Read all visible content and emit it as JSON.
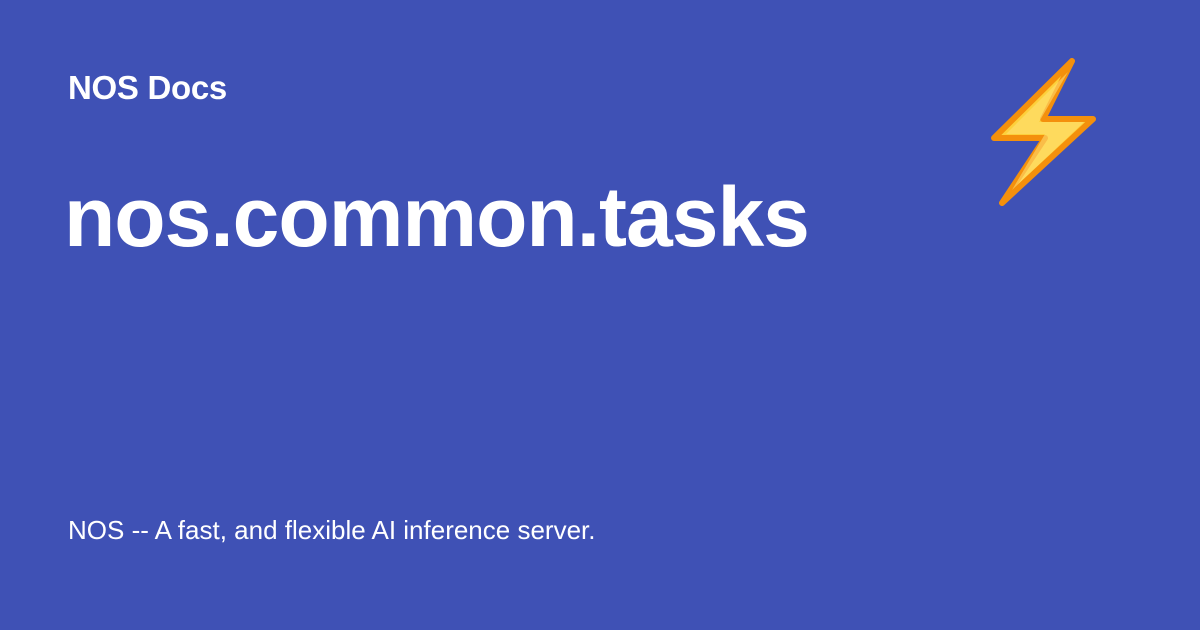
{
  "site": {
    "name": "NOS Docs"
  },
  "page": {
    "title": "nos.common.tasks",
    "description": "NOS -- A fast, and flexible AI inference server."
  },
  "logo": {
    "icon": "lightning-bolt-icon"
  },
  "colors": {
    "background": "#3f51b5",
    "text": "#ffffff",
    "bolt_fill": "#fdd03b",
    "bolt_outline": "#f4900c"
  }
}
